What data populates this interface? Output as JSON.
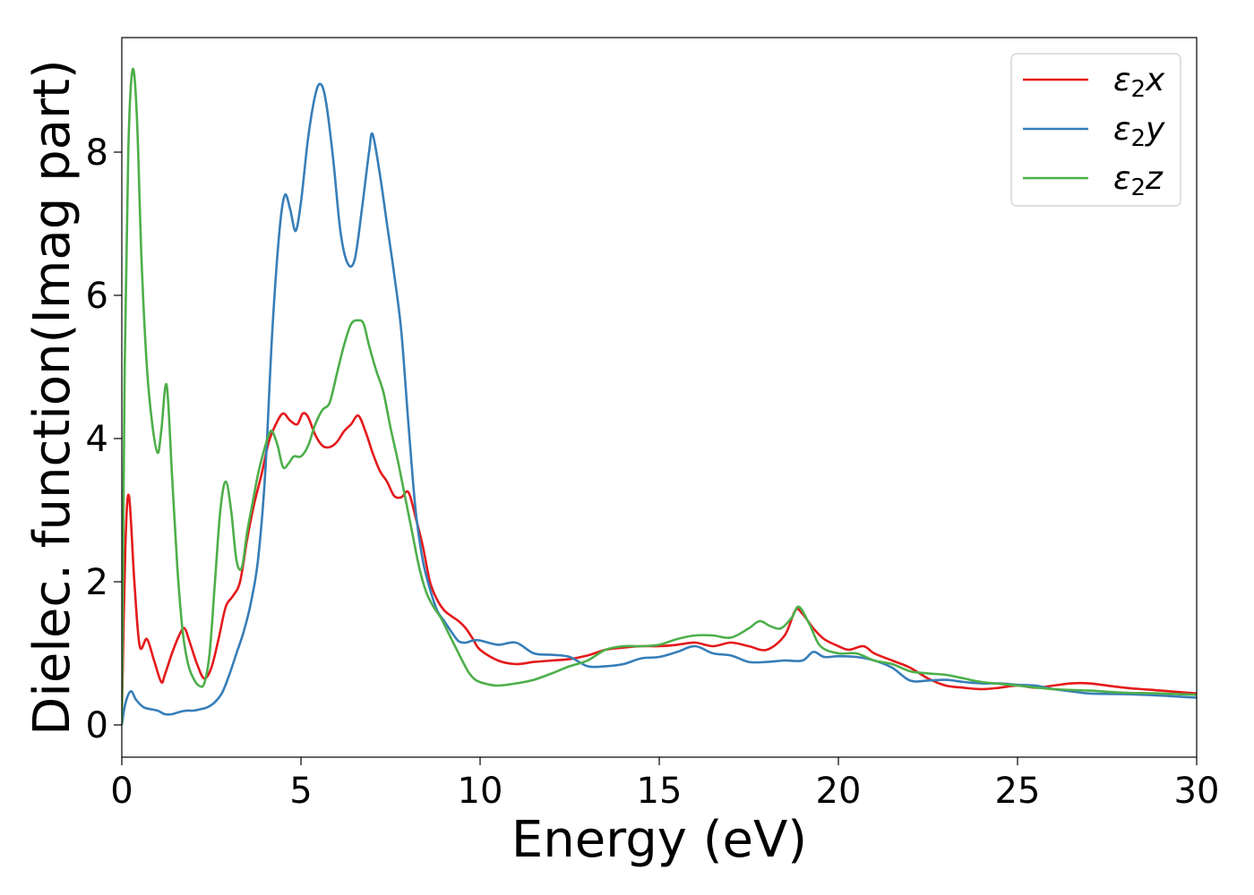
{
  "chart_data": {
    "type": "line",
    "xlabel": "Energy (eV)",
    "ylabel": "Dielec. function(Imag part)",
    "xlim": [
      0,
      30
    ],
    "ylim": [
      -0.45,
      9.6
    ],
    "xticks": [
      0,
      5,
      10,
      15,
      20,
      25,
      30
    ],
    "yticks": [
      0,
      2,
      4,
      6,
      8
    ],
    "grid": false,
    "legend_position": "top-right",
    "series": [
      {
        "name": "ε₂x",
        "legend_symbol": "ε",
        "legend_subscript": "2",
        "legend_suffix": "x",
        "color": "#e41a1c",
        "x": [
          0,
          0.1,
          0.2,
          0.35,
          0.5,
          0.7,
          0.9,
          1.1,
          1.2,
          1.4,
          1.6,
          1.75,
          1.9,
          2.1,
          2.3,
          2.5,
          2.7,
          2.9,
          3.1,
          3.3,
          3.5,
          3.7,
          3.9,
          4.1,
          4.3,
          4.5,
          4.7,
          4.9,
          5.05,
          5.2,
          5.4,
          5.6,
          5.8,
          6.0,
          6.2,
          6.4,
          6.6,
          6.8,
          7.0,
          7.2,
          7.4,
          7.6,
          7.8,
          8.0,
          8.2,
          8.4,
          8.6,
          8.8,
          9.0,
          9.2,
          9.4,
          9.6,
          9.8,
          10.0,
          10.5,
          11,
          11.5,
          12,
          12.5,
          13,
          13.5,
          14,
          14.5,
          15,
          15.5,
          16,
          16.5,
          17,
          17.5,
          18,
          18.5,
          18.8,
          19.0,
          19.3,
          19.6,
          20,
          20.3,
          20.7,
          21,
          21.5,
          22,
          22.5,
          23,
          23.5,
          24,
          24.5,
          25,
          25.5,
          26,
          26.5,
          27,
          28,
          29,
          30
        ],
        "y": [
          0.1,
          2.5,
          3.2,
          2.0,
          1.1,
          1.2,
          0.9,
          0.6,
          0.7,
          1.0,
          1.25,
          1.35,
          1.15,
          0.85,
          0.65,
          0.8,
          1.2,
          1.65,
          1.8,
          2.0,
          2.6,
          3.1,
          3.5,
          3.95,
          4.2,
          4.35,
          4.25,
          4.2,
          4.35,
          4.3,
          4.05,
          3.9,
          3.88,
          3.95,
          4.1,
          4.2,
          4.32,
          4.1,
          3.8,
          3.55,
          3.4,
          3.2,
          3.18,
          3.25,
          2.9,
          2.5,
          2.0,
          1.75,
          1.6,
          1.52,
          1.45,
          1.35,
          1.2,
          1.05,
          0.9,
          0.85,
          0.88,
          0.9,
          0.92,
          0.97,
          1.05,
          1.08,
          1.1,
          1.1,
          1.12,
          1.15,
          1.1,
          1.15,
          1.1,
          1.05,
          1.25,
          1.6,
          1.55,
          1.35,
          1.2,
          1.1,
          1.05,
          1.1,
          1.0,
          0.9,
          0.8,
          0.65,
          0.55,
          0.52,
          0.5,
          0.52,
          0.55,
          0.52,
          0.55,
          0.58,
          0.58,
          0.52,
          0.48,
          0.44
        ]
      },
      {
        "name": "ε₂y",
        "legend_symbol": "ε",
        "legend_subscript": "2",
        "legend_suffix": "y",
        "color": "#377eb8",
        "x": [
          0,
          0.1,
          0.25,
          0.4,
          0.6,
          0.8,
          1.0,
          1.2,
          1.4,
          1.6,
          1.8,
          2.0,
          2.2,
          2.4,
          2.6,
          2.8,
          3.0,
          3.2,
          3.4,
          3.6,
          3.8,
          4.0,
          4.2,
          4.4,
          4.55,
          4.7,
          4.85,
          5.0,
          5.2,
          5.4,
          5.55,
          5.7,
          5.9,
          6.1,
          6.3,
          6.5,
          6.7,
          6.9,
          7.0,
          7.2,
          7.4,
          7.6,
          7.8,
          8.0,
          8.2,
          8.4,
          8.6,
          8.8,
          9.0,
          9.2,
          9.4,
          9.6,
          9.8,
          10.0,
          10.5,
          11,
          11.5,
          12,
          12.5,
          13,
          13.5,
          14,
          14.5,
          15,
          15.5,
          16,
          16.5,
          17,
          17.5,
          18,
          18.5,
          19,
          19.3,
          19.6,
          20,
          20.5,
          21,
          21.5,
          22,
          22.5,
          23,
          23.5,
          24,
          24.5,
          25,
          25.5,
          26,
          26.5,
          27,
          28,
          29,
          30
        ],
        "y": [
          0.0,
          0.3,
          0.47,
          0.35,
          0.25,
          0.22,
          0.2,
          0.15,
          0.15,
          0.18,
          0.2,
          0.2,
          0.22,
          0.25,
          0.32,
          0.45,
          0.7,
          1.0,
          1.3,
          1.7,
          2.3,
          3.5,
          5.5,
          6.9,
          7.4,
          7.2,
          6.9,
          7.3,
          8.2,
          8.8,
          8.95,
          8.7,
          7.9,
          6.9,
          6.45,
          6.5,
          7.2,
          8.0,
          8.25,
          7.7,
          7.0,
          6.3,
          5.5,
          4.2,
          3.0,
          2.3,
          1.9,
          1.6,
          1.45,
          1.3,
          1.17,
          1.15,
          1.18,
          1.18,
          1.12,
          1.15,
          1.0,
          0.98,
          0.95,
          0.82,
          0.82,
          0.85,
          0.93,
          0.95,
          1.02,
          1.1,
          1.0,
          0.97,
          0.88,
          0.88,
          0.9,
          0.9,
          1.02,
          0.95,
          0.96,
          0.95,
          0.9,
          0.8,
          0.62,
          0.62,
          0.63,
          0.6,
          0.58,
          0.58,
          0.56,
          0.55,
          0.5,
          0.47,
          0.44,
          0.43,
          0.41,
          0.38
        ]
      },
      {
        "name": "ε₂z",
        "legend_symbol": "ε",
        "legend_subscript": "2",
        "legend_suffix": "z",
        "color": "#4daf4a",
        "x": [
          0,
          0.08,
          0.18,
          0.3,
          0.42,
          0.55,
          0.7,
          0.85,
          1.0,
          1.1,
          1.25,
          1.4,
          1.55,
          1.7,
          1.85,
          2.0,
          2.15,
          2.3,
          2.45,
          2.6,
          2.75,
          2.9,
          3.05,
          3.2,
          3.35,
          3.5,
          3.65,
          3.8,
          3.95,
          4.1,
          4.2,
          4.35,
          4.5,
          4.65,
          4.8,
          5.0,
          5.2,
          5.4,
          5.6,
          5.8,
          6.0,
          6.2,
          6.4,
          6.6,
          6.75,
          6.9,
          7.1,
          7.3,
          7.5,
          7.7,
          7.9,
          8.1,
          8.3,
          8.5,
          8.7,
          8.9,
          9.1,
          9.3,
          9.5,
          9.7,
          9.9,
          10.2,
          10.5,
          11,
          11.5,
          12,
          12.5,
          13,
          13.5,
          14,
          14.5,
          15,
          15.5,
          16,
          16.5,
          17,
          17.5,
          17.8,
          18.1,
          18.4,
          18.7,
          18.9,
          19.2,
          19.5,
          20,
          20.5,
          21,
          21.5,
          22,
          22.5,
          23,
          23.5,
          24,
          25,
          26,
          27,
          28,
          29,
          30
        ],
        "y": [
          0.0,
          5.0,
          8.0,
          9.15,
          8.5,
          6.5,
          5.0,
          4.2,
          3.8,
          4.1,
          4.75,
          3.5,
          2.2,
          1.3,
          0.85,
          0.65,
          0.55,
          0.58,
          1.0,
          2.0,
          3.0,
          3.4,
          3.0,
          2.3,
          2.2,
          2.7,
          3.1,
          3.5,
          3.8,
          4.05,
          4.1,
          3.9,
          3.6,
          3.65,
          3.75,
          3.75,
          3.9,
          4.2,
          4.4,
          4.5,
          4.9,
          5.3,
          5.6,
          5.65,
          5.6,
          5.3,
          4.95,
          4.65,
          4.15,
          3.7,
          3.2,
          2.7,
          2.2,
          1.85,
          1.65,
          1.5,
          1.3,
          1.1,
          0.9,
          0.72,
          0.62,
          0.57,
          0.55,
          0.58,
          0.63,
          0.72,
          0.82,
          0.9,
          1.05,
          1.1,
          1.1,
          1.12,
          1.2,
          1.25,
          1.25,
          1.22,
          1.35,
          1.45,
          1.38,
          1.35,
          1.5,
          1.65,
          1.4,
          1.1,
          1.0,
          1.0,
          0.9,
          0.85,
          0.75,
          0.72,
          0.7,
          0.65,
          0.6,
          0.55,
          0.5,
          0.48,
          0.45,
          0.44,
          0.42
        ]
      }
    ]
  }
}
